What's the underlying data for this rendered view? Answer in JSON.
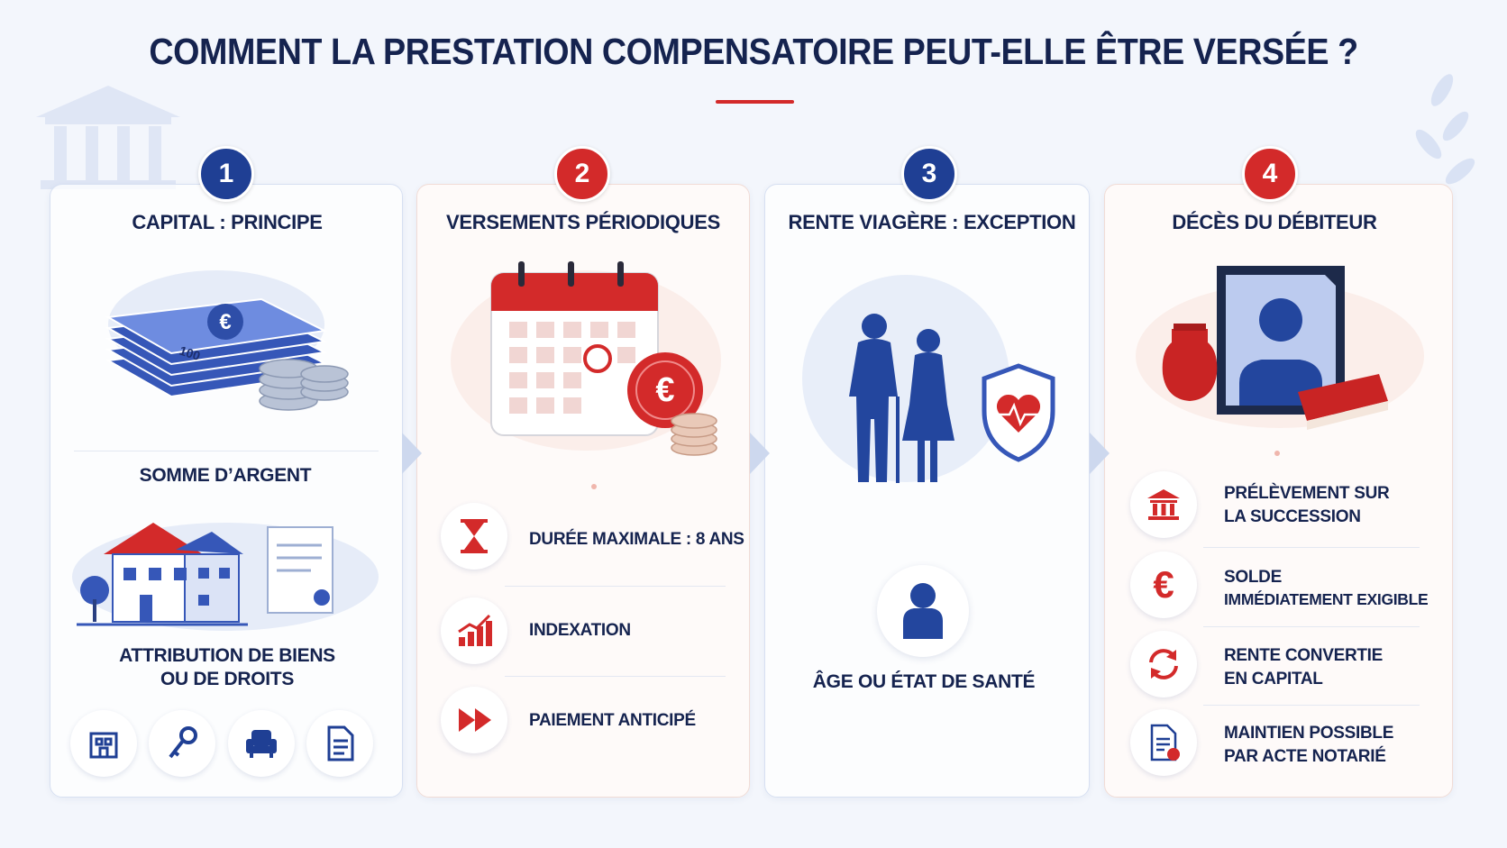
{
  "title": "COMMENT LA PRESTATION COMPENSATOIRE PEUT-ELLE ÊTRE VERSÉE ?",
  "columns": [
    {
      "number": "1",
      "heading": "CAPITAL : PRINCIPE",
      "sections": [
        {
          "lines": [
            "SOMME D’ARGENT"
          ]
        },
        {
          "lines": [
            "ATTRIBUTION DE BIENS",
            "OU DE DROITS"
          ]
        }
      ],
      "money_note": "100"
    },
    {
      "number": "2",
      "heading": "VERSEMENTS PÉRIODIQUES",
      "items": [
        {
          "lines": [
            "DURÉE MAXIMALE : 8 ANS"
          ]
        },
        {
          "lines": [
            "INDEXATION"
          ]
        },
        {
          "lines": [
            "PAIEMENT ANTICIPÉ"
          ]
        }
      ]
    },
    {
      "number": "3",
      "heading": "RENTE VIAGÈRE : EXCEPTION",
      "items": [
        {
          "lines": [
            "ÂGE OU ÉTAT DE SANTÉ"
          ]
        }
      ]
    },
    {
      "number": "4",
      "heading": "DÉCÈS DU DÉBITEUR",
      "items": [
        {
          "lines": [
            "PRÉLÈVEMENT SUR",
            "LA SUCCESSION"
          ]
        },
        {
          "lines": [
            "SOLDE",
            "IMMÉDIATEMENT EXIGIBLE"
          ]
        },
        {
          "lines": [
            "RENTE CONVERTIE",
            "EN CAPITAL"
          ]
        },
        {
          "lines": [
            "MAINTIEN POSSIBLE",
            "PAR ACTE NOTARIÉ"
          ]
        }
      ]
    }
  ]
}
